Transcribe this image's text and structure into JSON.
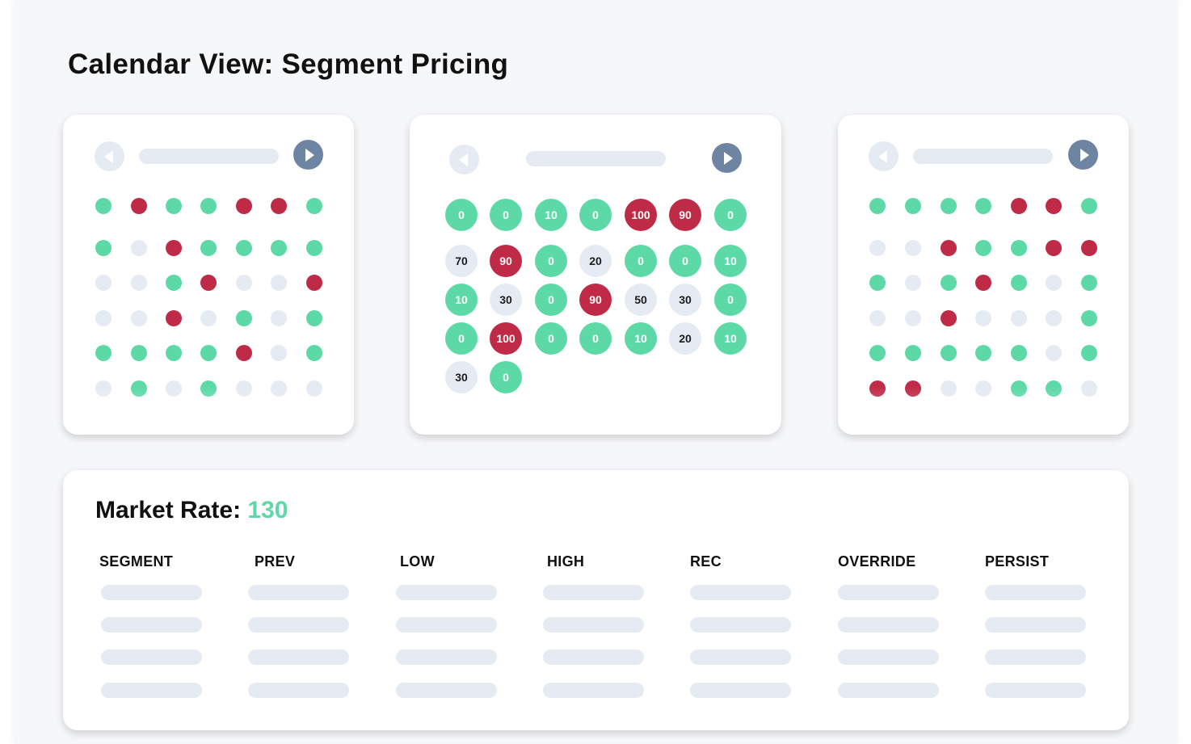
{
  "page": {
    "title": "Calendar View: Segment Pricing"
  },
  "colors": {
    "green": "#5dd9a8",
    "red": "#bf2b47",
    "gray": "#e5eaf3",
    "nav_active": "#6e84a3"
  },
  "icons": {
    "prev": "chevron-left-icon",
    "next": "chevron-right-icon"
  },
  "calendars": {
    "left": {
      "rows": [
        [
          "green",
          "red",
          "green",
          "green",
          "red",
          "red",
          "green"
        ],
        [
          "green",
          "gray",
          "red",
          "green",
          "green",
          "green",
          "green"
        ],
        [
          "gray",
          "gray",
          "green",
          "red",
          "gray",
          "gray",
          "red"
        ],
        [
          "gray",
          "gray",
          "red",
          "gray",
          "green",
          "gray",
          "green"
        ],
        [
          "green",
          "green",
          "green",
          "green",
          "red",
          "gray",
          "green"
        ],
        [
          "gray",
          "green",
          "gray",
          "green",
          "gray",
          "gray",
          "gray"
        ]
      ]
    },
    "middle": {
      "days": [
        {
          "value": "0",
          "status": "green"
        },
        {
          "value": "0",
          "status": "green"
        },
        {
          "value": "10",
          "status": "green"
        },
        {
          "value": "0",
          "status": "green"
        },
        {
          "value": "100",
          "status": "red"
        },
        {
          "value": "90",
          "status": "red"
        },
        {
          "value": "0",
          "status": "green"
        },
        {
          "value": "70",
          "status": "gray"
        },
        {
          "value": "90",
          "status": "red"
        },
        {
          "value": "0",
          "status": "green"
        },
        {
          "value": "20",
          "status": "gray"
        },
        {
          "value": "0",
          "status": "green"
        },
        {
          "value": "0",
          "status": "green"
        },
        {
          "value": "10",
          "status": "green"
        },
        {
          "value": "10",
          "status": "green"
        },
        {
          "value": "30",
          "status": "gray"
        },
        {
          "value": "0",
          "status": "green"
        },
        {
          "value": "90",
          "status": "red"
        },
        {
          "value": "50",
          "status": "gray"
        },
        {
          "value": "30",
          "status": "gray"
        },
        {
          "value": "0",
          "status": "green"
        },
        {
          "value": "0",
          "status": "green"
        },
        {
          "value": "100",
          "status": "red"
        },
        {
          "value": "0",
          "status": "green"
        },
        {
          "value": "0",
          "status": "green"
        },
        {
          "value": "10",
          "status": "green"
        },
        {
          "value": "20",
          "status": "gray"
        },
        {
          "value": "10",
          "status": "green"
        },
        {
          "value": "30",
          "status": "gray"
        },
        {
          "value": "0",
          "status": "green"
        }
      ]
    },
    "right": {
      "rows": [
        [
          "green",
          "green",
          "green",
          "green",
          "red",
          "red",
          "green"
        ],
        [
          "gray",
          "gray",
          "red",
          "green",
          "green",
          "red",
          "red"
        ],
        [
          "green",
          "gray",
          "green",
          "red",
          "green",
          "gray",
          "green"
        ],
        [
          "gray",
          "gray",
          "red",
          "gray",
          "gray",
          "gray",
          "green"
        ],
        [
          "green",
          "green",
          "green",
          "green",
          "green",
          "gray",
          "green"
        ],
        [
          "red",
          "red",
          "gray",
          "gray",
          "green",
          "green",
          "gray"
        ]
      ]
    }
  },
  "market": {
    "label": "Market Rate:",
    "value": "130",
    "columns": [
      "SEGMENT",
      "PREV",
      "LOW",
      "HIGH",
      "REC",
      "OVERRIDE",
      "PERSIST"
    ]
  }
}
